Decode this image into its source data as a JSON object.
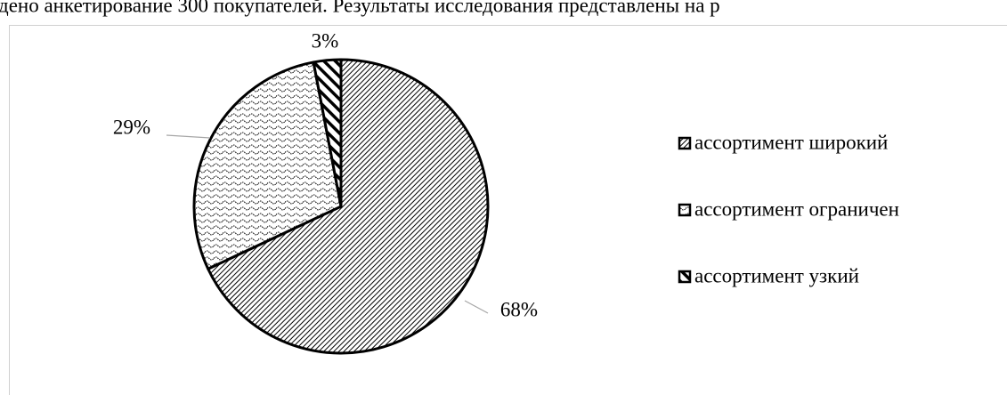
{
  "context_text": "дено анкетирование 300 покупателей. Результаты исследования представлены на р",
  "chart_data": {
    "type": "pie",
    "categories": [
      "ассортимент широкий",
      "ассортимент ограничен",
      "ассортимент узкий"
    ],
    "values": [
      68,
      29,
      3
    ],
    "value_labels": [
      "68%",
      "29%",
      "3%"
    ],
    "legend": "right"
  }
}
